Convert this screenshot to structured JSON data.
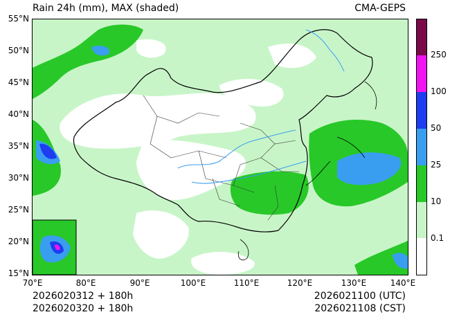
{
  "header": {
    "title": "Rain 24h (mm), MAX (shaded)",
    "model": "CMA-GEPS"
  },
  "axes": {
    "lat_labels": [
      "55°N",
      "50°N",
      "45°N",
      "40°N",
      "35°N",
      "30°N",
      "25°N",
      "20°N",
      "15°N"
    ],
    "lon_labels": [
      "70°E",
      "80°E",
      "90°E",
      "100°E",
      "110°E",
      "120°E",
      "130°E",
      "140°E"
    ]
  },
  "footer": {
    "init_line1": "2026020312 + 180h",
    "init_line2": "2026020320 + 180h",
    "valid_utc": "2026021100 (UTC)",
    "valid_cst": "2026021108 (CST)"
  },
  "colorbar": {
    "levels": [
      "0.1",
      "10",
      "25",
      "50",
      "100",
      "250"
    ],
    "colors": [
      "#ffffff",
      "#c8f5c8",
      "#28c828",
      "#3a9ef0",
      "#1e3cf0",
      "#f014f0",
      "#7a0a4a"
    ]
  }
}
